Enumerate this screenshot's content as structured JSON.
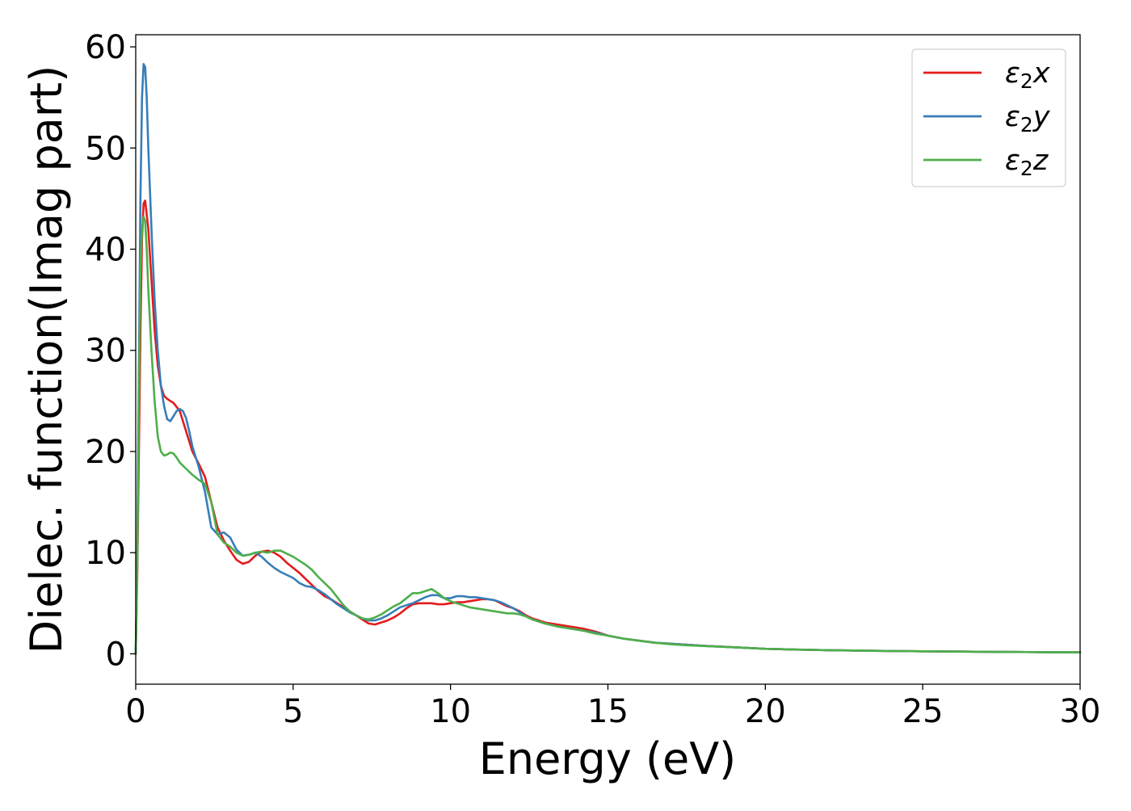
{
  "chart_data": {
    "type": "line",
    "title": "",
    "xlabel": "Energy (eV)",
    "ylabel": "Dielec. function(Imag part)",
    "xlim": [
      0,
      30
    ],
    "ylim": [
      -3,
      61.2
    ],
    "xticks": [
      0,
      5,
      10,
      15,
      20,
      25,
      30
    ],
    "yticks": [
      0,
      10,
      20,
      30,
      40,
      50,
      60
    ],
    "xtick_labels": [
      "0",
      "5",
      "10",
      "15",
      "20",
      "25",
      "30"
    ],
    "ytick_labels": [
      "0",
      "10",
      "20",
      "30",
      "40",
      "50",
      "60"
    ],
    "grid": false,
    "legend_position": "top-right",
    "legend": [
      {
        "base": "ε",
        "sub": "2",
        "suffix": "x"
      },
      {
        "base": "ε",
        "sub": "2",
        "suffix": "y"
      },
      {
        "base": "ε",
        "sub": "2",
        "suffix": "z"
      }
    ],
    "series": [
      {
        "color": "#e41a1c",
        "x": [
          0,
          0.05,
          0.1,
          0.15,
          0.2,
          0.25,
          0.3,
          0.4,
          0.5,
          0.6,
          0.7,
          0.8,
          0.9,
          1.0,
          1.2,
          1.4,
          1.6,
          1.8,
          2.0,
          2.2,
          2.4,
          2.6,
          2.8,
          3.0,
          3.2,
          3.4,
          3.6,
          3.8,
          4.0,
          4.2,
          4.4,
          4.6,
          4.8,
          5.0,
          5.2,
          5.4,
          5.6,
          5.8,
          6.0,
          6.2,
          6.4,
          6.6,
          6.8,
          7.0,
          7.2,
          7.4,
          7.6,
          7.8,
          8.0,
          8.2,
          8.4,
          8.6,
          8.8,
          9.0,
          9.2,
          9.4,
          9.6,
          9.8,
          10.0,
          10.2,
          10.4,
          10.6,
          10.8,
          11.0,
          11.2,
          11.4,
          11.6,
          11.8,
          12.0,
          12.2,
          12.4,
          12.6,
          12.8,
          13.0,
          13.4,
          13.8,
          14.2,
          14.6,
          15.0,
          15.5,
          16.0,
          16.5,
          17.0,
          17.5,
          18.0,
          19.0,
          20.0,
          21.0,
          22.0,
          23.0,
          24.0,
          25.0,
          26.0,
          27.0,
          28.0,
          29.0,
          30.0
        ],
        "y": [
          0,
          8,
          20,
          32,
          41,
          44.5,
          44.8,
          42,
          37,
          32,
          28.5,
          26.5,
          25.5,
          25.2,
          24.8,
          24,
          22,
          20,
          18.8,
          17.5,
          15,
          12.5,
          11.2,
          10.2,
          9.3,
          8.9,
          9.1,
          9.7,
          10.1,
          10.2,
          10.0,
          9.6,
          9.0,
          8.5,
          8.0,
          7.4,
          6.8,
          6.2,
          5.7,
          5.4,
          5.0,
          4.6,
          4.2,
          3.8,
          3.4,
          3.0,
          2.9,
          3.1,
          3.3,
          3.6,
          4.0,
          4.5,
          4.9,
          5.0,
          5.0,
          5.0,
          4.9,
          4.9,
          5.0,
          5.1,
          5.1,
          5.2,
          5.3,
          5.4,
          5.4,
          5.3,
          5.0,
          4.7,
          4.5,
          4.2,
          3.8,
          3.5,
          3.3,
          3.1,
          2.9,
          2.7,
          2.5,
          2.2,
          1.8,
          1.5,
          1.3,
          1.1,
          1.0,
          0.9,
          0.8,
          0.65,
          0.5,
          0.42,
          0.36,
          0.32,
          0.28,
          0.25,
          0.23,
          0.2,
          0.18,
          0.16,
          0.15
        ]
      },
      {
        "color": "#377eb8",
        "x": [
          0,
          0.05,
          0.1,
          0.15,
          0.2,
          0.25,
          0.3,
          0.35,
          0.4,
          0.5,
          0.6,
          0.7,
          0.8,
          0.9,
          1.0,
          1.1,
          1.2,
          1.3,
          1.4,
          1.5,
          1.6,
          1.7,
          1.8,
          2.0,
          2.2,
          2.4,
          2.6,
          2.8,
          3.0,
          3.2,
          3.4,
          3.6,
          3.8,
          4.0,
          4.2,
          4.4,
          4.6,
          4.8,
          5.0,
          5.2,
          5.4,
          5.6,
          5.8,
          6.0,
          6.2,
          6.4,
          6.6,
          6.8,
          7.0,
          7.2,
          7.4,
          7.6,
          7.8,
          8.0,
          8.2,
          8.4,
          8.6,
          8.8,
          9.0,
          9.2,
          9.4,
          9.6,
          9.8,
          10.0,
          10.2,
          10.4,
          10.6,
          10.8,
          11.0,
          11.2,
          11.4,
          11.6,
          11.8,
          12.0,
          12.2,
          12.4,
          12.6,
          12.8,
          13.0,
          13.4,
          13.8,
          14.2,
          14.6,
          15.0,
          15.5,
          16.0,
          16.5,
          17.0,
          17.5,
          18.0,
          19.0,
          20.0,
          21.0,
          22.0,
          23.0,
          24.0,
          25.0,
          26.0,
          27.0,
          28.0,
          29.0,
          30.0
        ],
        "y": [
          0,
          10,
          28,
          45,
          55,
          58.3,
          58,
          55,
          50,
          42,
          35,
          30,
          26.5,
          24.5,
          23.2,
          23.0,
          23.5,
          24.0,
          24.2,
          24.0,
          23.3,
          22.0,
          20.5,
          18.5,
          16.0,
          12.5,
          11.8,
          12.0,
          11.5,
          10.3,
          9.7,
          9.8,
          10.0,
          9.6,
          9.0,
          8.5,
          8.1,
          7.8,
          7.5,
          7.0,
          6.7,
          6.6,
          6.3,
          5.9,
          5.4,
          4.9,
          4.5,
          4.1,
          3.8,
          3.5,
          3.3,
          3.3,
          3.5,
          3.8,
          4.2,
          4.6,
          4.8,
          5.0,
          5.3,
          5.6,
          5.8,
          5.8,
          5.5,
          5.5,
          5.7,
          5.7,
          5.6,
          5.6,
          5.5,
          5.4,
          5.3,
          5.1,
          4.8,
          4.5,
          4.1,
          3.7,
          3.4,
          3.2,
          3.0,
          2.7,
          2.5,
          2.3,
          2.1,
          1.8,
          1.5,
          1.3,
          1.1,
          1.0,
          0.9,
          0.8,
          0.65,
          0.5,
          0.42,
          0.36,
          0.32,
          0.28,
          0.25,
          0.23,
          0.2,
          0.18,
          0.16,
          0.15
        ]
      },
      {
        "color": "#4daf4a",
        "x": [
          0,
          0.05,
          0.1,
          0.15,
          0.2,
          0.25,
          0.3,
          0.35,
          0.4,
          0.5,
          0.6,
          0.7,
          0.8,
          0.9,
          1.0,
          1.1,
          1.2,
          1.3,
          1.4,
          1.6,
          1.8,
          2.0,
          2.2,
          2.4,
          2.6,
          2.8,
          3.0,
          3.2,
          3.4,
          3.6,
          3.8,
          4.0,
          4.2,
          4.4,
          4.6,
          4.8,
          5.0,
          5.2,
          5.4,
          5.6,
          5.8,
          6.0,
          6.2,
          6.4,
          6.6,
          6.8,
          7.0,
          7.2,
          7.4,
          7.6,
          7.8,
          8.0,
          8.2,
          8.4,
          8.6,
          8.8,
          9.0,
          9.2,
          9.4,
          9.6,
          9.8,
          10.0,
          10.2,
          10.4,
          10.6,
          10.8,
          11.0,
          11.2,
          11.4,
          11.6,
          11.8,
          12.0,
          12.2,
          12.4,
          12.6,
          12.8,
          13.0,
          13.4,
          13.8,
          14.2,
          14.6,
          15.0,
          15.5,
          16.0,
          16.5,
          17.0,
          17.5,
          18.0,
          19.0,
          20.0,
          21.0,
          22.0,
          23.0,
          24.0,
          25.0,
          26.0,
          27.0,
          28.0,
          29.0,
          30.0
        ],
        "y": [
          0,
          9,
          25,
          38,
          42,
          43.2,
          42.8,
          40,
          36,
          30,
          25,
          21.5,
          20.0,
          19.6,
          19.7,
          19.9,
          19.8,
          19.4,
          18.9,
          18.3,
          17.7,
          17.2,
          16.8,
          15.0,
          11.8,
          11.0,
          10.6,
          10.0,
          9.7,
          9.8,
          10.0,
          10.1,
          10.0,
          10.2,
          10.2,
          9.9,
          9.6,
          9.2,
          8.8,
          8.3,
          7.6,
          7.0,
          6.4,
          5.6,
          4.8,
          4.2,
          3.8,
          3.5,
          3.4,
          3.6,
          3.9,
          4.3,
          4.7,
          5.0,
          5.5,
          6.0,
          6.0,
          6.2,
          6.4,
          6.0,
          5.5,
          5.2,
          5.0,
          4.8,
          4.6,
          4.5,
          4.4,
          4.3,
          4.2,
          4.1,
          4.0,
          4.0,
          3.9,
          3.7,
          3.4,
          3.2,
          3.0,
          2.7,
          2.5,
          2.3,
          2.0,
          1.8,
          1.5,
          1.3,
          1.1,
          0.95,
          0.85,
          0.78,
          0.65,
          0.5,
          0.42,
          0.36,
          0.32,
          0.28,
          0.25,
          0.23,
          0.2,
          0.18,
          0.16,
          0.15
        ]
      }
    ]
  }
}
